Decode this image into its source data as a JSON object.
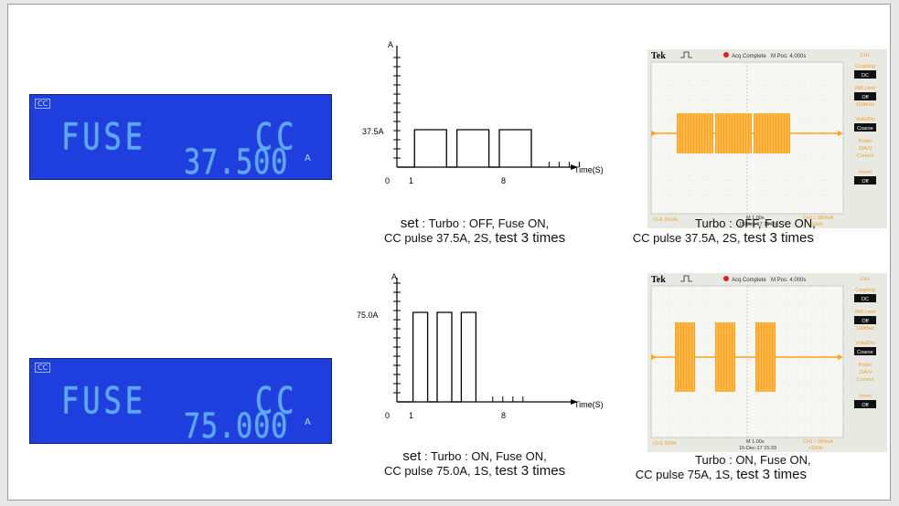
{
  "displays": [
    {
      "tag": "CC",
      "mode": "FUSE",
      "func": "CC",
      "value": "37.500",
      "unit": "A"
    },
    {
      "tag": "CC",
      "mode": "FUSE",
      "func": "CC",
      "value": "75.000",
      "unit": "A"
    }
  ],
  "set_captions": [
    {
      "line1": "set : Turbo : OFF, Fuse ON,",
      "line2a": "CC pulse  37.5A, 2S, ",
      "line2b": "test 3 times"
    },
    {
      "line1": "set : Turbo : ON, Fuse ON,",
      "line2a": "CC pulse  75.0A, 1S, ",
      "line2b": "test 3 times"
    }
  ],
  "scope_captions": [
    {
      "line1": "Turbo : OFF, Fuse ON,",
      "line2a": "CC pulse  37.5A, 2S, ",
      "line2b": "test 3 times"
    },
    {
      "line1": "Turbo : ON, Fuse ON,",
      "line2a": "CC pulse  75A, 1S, ",
      "line2b": "test 3 times"
    }
  ],
  "pulse_charts": [
    {
      "y_axis_label": "A",
      "x_axis_label": "Time(S)",
      "level_label": "37.5A",
      "origin_label": "0",
      "tick_1": "1",
      "tick_8": "8",
      "pulse_width_s": 2,
      "pulse_count": 3
    },
    {
      "y_axis_label": "A",
      "x_axis_label": "Time(S)",
      "level_label": "75.0A",
      "origin_label": "0",
      "tick_1": "1",
      "tick_8": "8",
      "pulse_width_s": 1,
      "pulse_count": 3
    }
  ],
  "scopes": [
    {
      "brand": "Tek",
      "status": "Acq Complete",
      "mpos": "M Pos: 4.000s",
      "menu": [
        "CH1",
        "Coupling",
        "DC",
        "BW Limit",
        "Off",
        "100MHz",
        "Volts/Div",
        "Coarse",
        "Probe",
        "10A/V",
        "Current",
        "Invert",
        "Off"
      ],
      "ch_label": "CH1  50.0A",
      "timebase": "M 1.00s",
      "date": "15-Dec-17 15:09",
      "trig": "CH1 / 380mA",
      "freq": "<10Hz"
    },
    {
      "brand": "Tek",
      "status": "Acq Complete",
      "mpos": "M Pos: 4.000s",
      "menu": [
        "CH1",
        "Coupling",
        "DC",
        "BW Limit",
        "Off",
        "100MHz",
        "Volts/Div",
        "Coarse",
        "Probe",
        "10A/V",
        "Current",
        "Invert",
        "Off"
      ],
      "ch_label": "CH1  500A",
      "timebase": "M 1.00s",
      "date": "15-Dec-17 15:33",
      "trig": "CH1 / 380mA",
      "freq": "<10Hz"
    }
  ],
  "colors": {
    "lcd_bg": "#1f3ede",
    "lcd_fg": "#5da9ff",
    "scope_trace": "#ffa21c",
    "scope_bg": "#f6f6f2"
  }
}
